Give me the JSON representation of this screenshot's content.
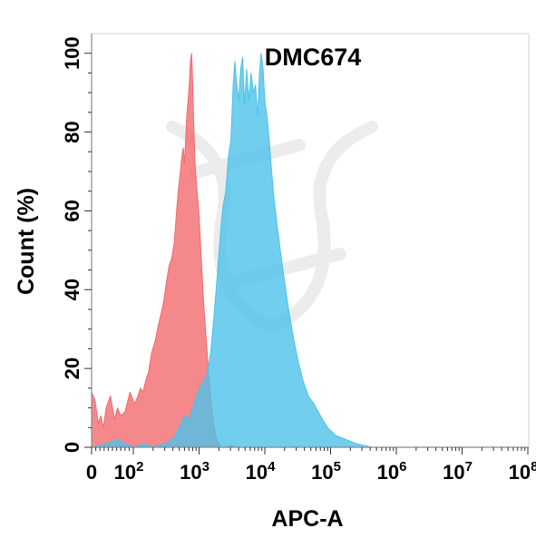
{
  "chart_data": {
    "type": "area",
    "title": "DMC674",
    "xlabel": "APC-A",
    "ylabel": "Count  (%)",
    "x_scale": "biexponential",
    "xlim": [
      0,
      100000000
    ],
    "ylim": [
      0,
      105
    ],
    "x_ticks": [
      {
        "value": 0,
        "base": "0",
        "exp": ""
      },
      {
        "value": 100,
        "base": "10",
        "exp": "2"
      },
      {
        "value": 1000,
        "base": "10",
        "exp": "3"
      },
      {
        "value": 10000,
        "base": "10",
        "exp": "4"
      },
      {
        "value": 100000,
        "base": "10",
        "exp": "5"
      },
      {
        "value": 1000000,
        "base": "10",
        "exp": "6"
      },
      {
        "value": 10000000,
        "base": "10",
        "exp": "7"
      },
      {
        "value": 100000000,
        "base": "10",
        "exp": "8"
      }
    ],
    "y_ticks": [
      "0",
      "20",
      "40",
      "60",
      "80",
      "100"
    ],
    "grid": false,
    "series": [
      {
        "color": "#f26a6e",
        "points": [
          [
            0,
            14
          ],
          [
            8,
            12
          ],
          [
            16,
            6
          ],
          [
            22,
            8
          ],
          [
            28,
            5
          ],
          [
            35,
            10
          ],
          [
            45,
            13
          ],
          [
            55,
            7
          ],
          [
            62,
            10
          ],
          [
            70,
            8
          ],
          [
            80,
            9
          ],
          [
            92,
            14
          ],
          [
            105,
            11
          ],
          [
            118,
            13
          ],
          [
            128,
            15
          ],
          [
            140,
            14
          ],
          [
            155,
            17
          ],
          [
            170,
            19
          ],
          [
            190,
            24
          ],
          [
            215,
            27
          ],
          [
            240,
            31
          ],
          [
            265,
            34
          ],
          [
            290,
            37
          ],
          [
            320,
            42
          ],
          [
            350,
            46
          ],
          [
            385,
            48
          ],
          [
            420,
            52
          ],
          [
            455,
            60
          ],
          [
            490,
            66
          ],
          [
            520,
            70
          ],
          [
            550,
            74
          ],
          [
            575,
            76
          ],
          [
            600,
            72
          ],
          [
            625,
            78
          ],
          [
            650,
            84
          ],
          [
            680,
            88
          ],
          [
            710,
            92
          ],
          [
            740,
            98
          ],
          [
            770,
            100
          ],
          [
            800,
            92
          ],
          [
            830,
            82
          ],
          [
            870,
            72
          ],
          [
            920,
            66
          ],
          [
            990,
            60
          ],
          [
            1080,
            48
          ],
          [
            1180,
            36
          ],
          [
            1300,
            26
          ],
          [
            1420,
            17
          ],
          [
            1560,
            10
          ],
          [
            1700,
            5
          ],
          [
            1850,
            2
          ],
          [
            2000,
            1
          ],
          [
            2200,
            0
          ],
          [
            2600,
            0
          ],
          [
            3000,
            0.5
          ],
          [
            3600,
            0
          ],
          [
            100000000,
            0
          ]
        ]
      },
      {
        "color": "#4ec2ea",
        "points": [
          [
            0,
            0
          ],
          [
            40,
            1
          ],
          [
            60,
            2
          ],
          [
            80,
            1
          ],
          [
            100,
            0
          ],
          [
            150,
            1
          ],
          [
            200,
            0
          ],
          [
            300,
            1
          ],
          [
            400,
            2
          ],
          [
            500,
            5
          ],
          [
            600,
            8
          ],
          [
            700,
            7
          ],
          [
            800,
            10
          ],
          [
            950,
            14
          ],
          [
            1100,
            16
          ],
          [
            1300,
            18
          ],
          [
            1500,
            24
          ],
          [
            1700,
            34
          ],
          [
            1900,
            44
          ],
          [
            2100,
            54
          ],
          [
            2300,
            61
          ],
          [
            2550,
            65
          ],
          [
            2800,
            74
          ],
          [
            3050,
            78
          ],
          [
            3300,
            92
          ],
          [
            3500,
            98
          ],
          [
            3700,
            93
          ],
          [
            4000,
            88
          ],
          [
            4300,
            96
          ],
          [
            4600,
            99
          ],
          [
            4900,
            87
          ],
          [
            5300,
            96
          ],
          [
            5700,
            88
          ],
          [
            6200,
            95
          ],
          [
            6700,
            90
          ],
          [
            7200,
            92
          ],
          [
            7800,
            84
          ],
          [
            8300,
            95
          ],
          [
            8800,
            100
          ],
          [
            9400,
            96
          ],
          [
            10000,
            88
          ],
          [
            10800,
            84
          ],
          [
            11700,
            78
          ],
          [
            12700,
            70
          ],
          [
            14000,
            62
          ],
          [
            15500,
            56
          ],
          [
            17500,
            49
          ],
          [
            20000,
            42
          ],
          [
            23000,
            35
          ],
          [
            27000,
            28
          ],
          [
            32000,
            22
          ],
          [
            38000,
            17
          ],
          [
            46000,
            13
          ],
          [
            56000,
            11
          ],
          [
            70000,
            8
          ],
          [
            90000,
            5
          ],
          [
            120000,
            3
          ],
          [
            170000,
            2
          ],
          [
            240000,
            1
          ],
          [
            320000,
            0.5
          ],
          [
            420000,
            0
          ],
          [
            100000000,
            0
          ]
        ]
      }
    ]
  }
}
